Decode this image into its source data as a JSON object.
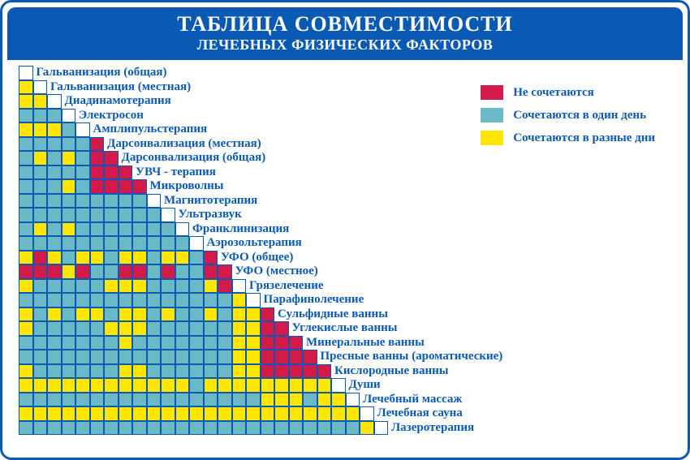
{
  "header": {
    "line1": "ТАБЛИЦА СОВМЕСТИМОСТИ",
    "line2": "ЛЕЧЕБНЫХ ФИЗИЧЕСКИХ ФАКТОРОВ"
  },
  "chart": {
    "type": "lower-triangular-matrix",
    "cell_size": 17.5,
    "border_color": "#0a5ab4",
    "colors": {
      "R": "#d31a4b",
      "T": "#6cb9c6",
      "Y": "#ffe600",
      "W": "#ffffff"
    },
    "legend": [
      {
        "key": "R",
        "label": "Не сочетаются"
      },
      {
        "key": "T",
        "label": "Сочетаются в один день"
      },
      {
        "key": "Y",
        "label": "Сочетаются в разные дни"
      }
    ],
    "label_color": "#0a5ab4",
    "label_fontsize": 15,
    "rows": [
      {
        "cells": [
          "W"
        ],
        "label": "Гальванизация (общая)"
      },
      {
        "cells": [
          "Y",
          "W"
        ],
        "label": "Гальванизация (местная)"
      },
      {
        "cells": [
          "Y",
          "Y",
          "W"
        ],
        "label": "Диадинамотерапия"
      },
      {
        "cells": [
          "T",
          "T",
          "T",
          "W"
        ],
        "label": "Электросон"
      },
      {
        "cells": [
          "Y",
          "Y",
          "Y",
          "T",
          "W"
        ],
        "label": "Амплипульстерапия"
      },
      {
        "cells": [
          "T",
          "T",
          "T",
          "T",
          "T",
          "R"
        ],
        "label": "Дарсонвализация (местная)"
      },
      {
        "cells": [
          "T",
          "Y",
          "T",
          "Y",
          "T",
          "R",
          "R"
        ],
        "label": "Дарсонвализация (общая)"
      },
      {
        "cells": [
          "T",
          "T",
          "T",
          "T",
          "T",
          "R",
          "R",
          "R"
        ],
        "label": "УВЧ - терапия"
      },
      {
        "cells": [
          "T",
          "T",
          "T",
          "Y",
          "T",
          "R",
          "R",
          "R",
          "R"
        ],
        "label": "Микроволны"
      },
      {
        "cells": [
          "T",
          "T",
          "T",
          "T",
          "T",
          "T",
          "T",
          "T",
          "T",
          "W"
        ],
        "label": "Магнитотерапия"
      },
      {
        "cells": [
          "T",
          "T",
          "T",
          "T",
          "T",
          "T",
          "T",
          "T",
          "T",
          "T",
          "W"
        ],
        "label": "Ультразвук"
      },
      {
        "cells": [
          "T",
          "Y",
          "T",
          "Y",
          "T",
          "T",
          "T",
          "T",
          "T",
          "T",
          "T",
          "W"
        ],
        "label": "Франклинизация"
      },
      {
        "cells": [
          "T",
          "T",
          "T",
          "T",
          "T",
          "T",
          "T",
          "T",
          "T",
          "T",
          "T",
          "T",
          "W"
        ],
        "label": "Аэрозольтерапия"
      },
      {
        "cells": [
          "Y",
          "R",
          "Y",
          "T",
          "Y",
          "Y",
          "T",
          "Y",
          "Y",
          "T",
          "Y",
          "Y",
          "T",
          "R"
        ],
        "label": "УФО (общее)"
      },
      {
        "cells": [
          "R",
          "R",
          "R",
          "Y",
          "R",
          "T",
          "T",
          "R",
          "R",
          "T",
          "R",
          "T",
          "T",
          "R",
          "R"
        ],
        "label": "УФО (местное)"
      },
      {
        "cells": [
          "Y",
          "T",
          "T",
          "T",
          "T",
          "T",
          "Y",
          "Y",
          "Y",
          "T",
          "T",
          "T",
          "T",
          "Y",
          "R",
          "W"
        ],
        "label": "Грязелечение"
      },
      {
        "cells": [
          "T",
          "T",
          "T",
          "T",
          "T",
          "T",
          "T",
          "T",
          "T",
          "T",
          "T",
          "T",
          "T",
          "T",
          "T",
          "Y",
          "W"
        ],
        "label": "Парафинолечение"
      },
      {
        "cells": [
          "Y",
          "T",
          "Y",
          "T",
          "Y",
          "Y",
          "T",
          "Y",
          "Y",
          "T",
          "Y",
          "T",
          "T",
          "Y",
          "T",
          "Y",
          "Y",
          "R"
        ],
        "label": "Сульфидные ванны"
      },
      {
        "cells": [
          "Y",
          "T",
          "T",
          "T",
          "T",
          "T",
          "Y",
          "Y",
          "Y",
          "T",
          "T",
          "T",
          "T",
          "T",
          "T",
          "Y",
          "Y",
          "R",
          "R"
        ],
        "label": "Углекислые ванны"
      },
      {
        "cells": [
          "T",
          "T",
          "T",
          "T",
          "T",
          "T",
          "T",
          "Y",
          "T",
          "T",
          "T",
          "T",
          "T",
          "T",
          "T",
          "Y",
          "Y",
          "R",
          "R",
          "R"
        ],
        "label": "Минеральные ванны"
      },
      {
        "cells": [
          "T",
          "T",
          "T",
          "T",
          "T",
          "T",
          "T",
          "T",
          "T",
          "T",
          "T",
          "T",
          "T",
          "T",
          "T",
          "Y",
          "Y",
          "R",
          "R",
          "R",
          "R"
        ],
        "label": "Пресные ванны (ароматические)"
      },
      {
        "cells": [
          "Y",
          "T",
          "T",
          "T",
          "T",
          "T",
          "T",
          "Y",
          "Y",
          "T",
          "T",
          "T",
          "T",
          "T",
          "T",
          "Y",
          "Y",
          "R",
          "R",
          "R",
          "R",
          "R"
        ],
        "label": "Кислородные ванны"
      },
      {
        "cells": [
          "Y",
          "Y",
          "Y",
          "Y",
          "Y",
          "Y",
          "Y",
          "Y",
          "Y",
          "Y",
          "Y",
          "Y",
          "T",
          "Y",
          "Y",
          "Y",
          "Y",
          "Y",
          "Y",
          "Y",
          "Y",
          "Y",
          "W"
        ],
        "label": "Души"
      },
      {
        "cells": [
          "T",
          "T",
          "T",
          "T",
          "T",
          "T",
          "T",
          "T",
          "T",
          "T",
          "T",
          "T",
          "T",
          "T",
          "T",
          "T",
          "T",
          "Y",
          "Y",
          "Y",
          "T",
          "Y",
          "Y",
          "W"
        ],
        "label": "Лечебный массаж"
      },
      {
        "cells": [
          "Y",
          "Y",
          "Y",
          "Y",
          "Y",
          "Y",
          "Y",
          "Y",
          "Y",
          "Y",
          "Y",
          "Y",
          "Y",
          "Y",
          "Y",
          "Y",
          "Y",
          "Y",
          "Y",
          "Y",
          "Y",
          "Y",
          "Y",
          "Y",
          "W"
        ],
        "label": "Лечебная сауна"
      },
      {
        "cells": [
          "T",
          "T",
          "T",
          "T",
          "T",
          "T",
          "T",
          "T",
          "T",
          "T",
          "T",
          "T",
          "T",
          "T",
          "T",
          "T",
          "T",
          "T",
          "T",
          "T",
          "T",
          "T",
          "T",
          "T",
          "Y",
          "W"
        ],
        "label": "Лазеротерапия"
      }
    ]
  }
}
